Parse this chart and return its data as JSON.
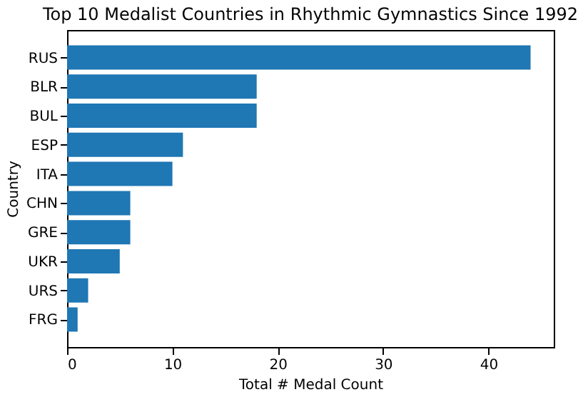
{
  "chart_data": {
    "type": "bar",
    "orientation": "horizontal",
    "title": "Top 10 Medalist Countries in Rhythmic Gymnastics Since 1992",
    "xlabel": "Total #  Medal Count",
    "ylabel": "Country",
    "categories": [
      "RUS",
      "BLR",
      "BUL",
      "ESP",
      "ITA",
      "CHN",
      "GRE",
      "UKR",
      "URS",
      "FRG"
    ],
    "values": [
      44,
      18,
      18,
      11,
      10,
      6,
      6,
      5,
      2,
      1
    ],
    "color": "#1f77b4",
    "xlim": [
      0,
      46.2
    ],
    "xticks": [
      0,
      10,
      20,
      30,
      40
    ],
    "grid": false
  }
}
